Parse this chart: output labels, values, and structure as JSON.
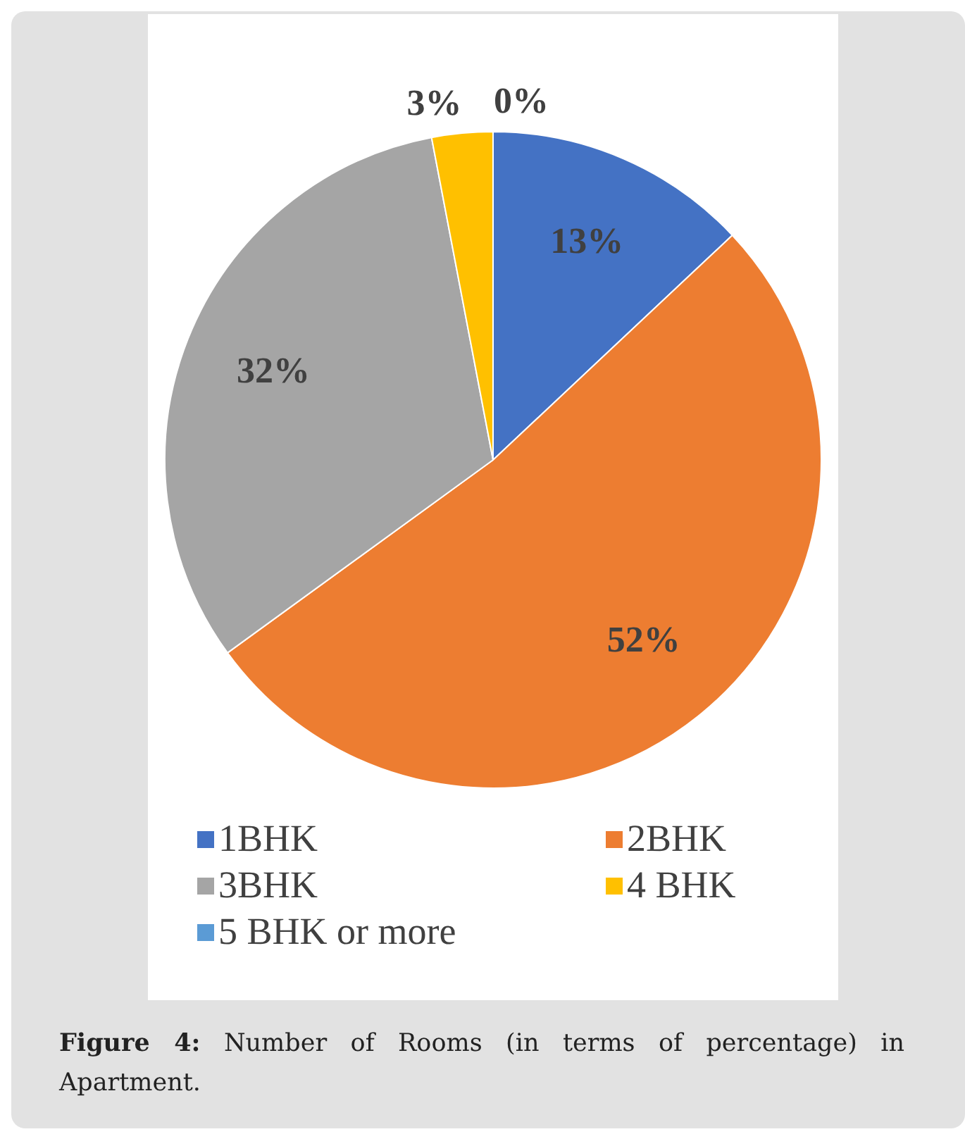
{
  "chart_data": {
    "type": "pie",
    "categories": [
      "1BHK",
      "2BHK",
      "3BHK",
      "4 BHK",
      "5 BHK or more"
    ],
    "values": [
      13,
      52,
      32,
      3,
      0
    ],
    "value_labels": [
      "13%",
      "52%",
      "32%",
      "3%",
      "0%"
    ],
    "colors": [
      "#4472c4",
      "#ed7d31",
      "#a5a5a5",
      "#ffc000",
      "#5b9bd5"
    ],
    "legend": "bottom",
    "annotations": [
      "Figure 4: Number of Rooms (in terms of percentage) in Apartment."
    ]
  }
}
